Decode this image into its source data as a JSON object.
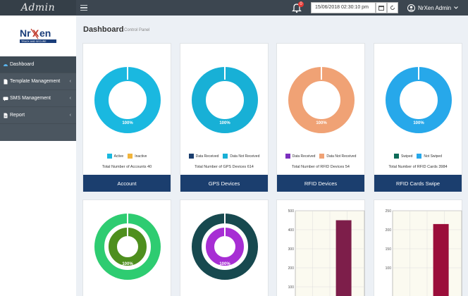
{
  "app": {
    "brand": "Admin",
    "logo_text": "NrXen",
    "logo_tagline": "TRACK AND SECURE"
  },
  "header": {
    "notification_count": "0",
    "datetime": "15/06/2018 02:30:10 pm",
    "user_name": "NrXen Admin"
  },
  "sidebar": {
    "items": [
      {
        "label": "Dashboard",
        "icon": "dashboard-icon",
        "active": true
      },
      {
        "label": "Template Management",
        "icon": "file-icon",
        "active": false
      },
      {
        "label": "SMS Management",
        "icon": "sms-icon",
        "active": false
      },
      {
        "label": "Report",
        "icon": "report-icon",
        "active": false
      }
    ]
  },
  "page": {
    "title": "Dashboard",
    "subtitle": "Control Panel"
  },
  "cards": [
    {
      "button": "Account",
      "total": "Total Number of Accounts 40",
      "percent_label": "100%",
      "color": "#1ab8e0",
      "legend": [
        {
          "label": "Active",
          "color": "#1ab8e0"
        },
        {
          "label": "Inactive",
          "color": "#f2b53c"
        }
      ]
    },
    {
      "button": "GPS Devices",
      "total": "Total Number of GPS Devices 614",
      "percent_label": "100%",
      "color": "#18b0d6",
      "legend": [
        {
          "label": "Data Received",
          "color": "#1b3e6e"
        },
        {
          "label": "Data Not Received",
          "color": "#18b0d6"
        }
      ]
    },
    {
      "button": "RFID Devices",
      "total": "Total Number of RFID Devices 54",
      "percent_label": "100%",
      "color": "#f0a275",
      "legend": [
        {
          "label": "Data Received",
          "color": "#7b2fbe"
        },
        {
          "label": "Data Not Received",
          "color": "#f0a275"
        }
      ]
    },
    {
      "button": "RFID Cards Swipe",
      "total": "Total Number of RFID Cards 3984",
      "percent_label": "100%",
      "color": "#27a8ea",
      "legend": [
        {
          "label": "Swiped",
          "color": "#0e6b58"
        },
        {
          "label": "Not Swiped",
          "color": "#27a8ea"
        }
      ]
    }
  ],
  "bottom_donuts": [
    {
      "percent_label": "100%",
      "outer_color": "#2ecc71",
      "inner_color": "#4e8f1e"
    },
    {
      "percent_label": "100%",
      "outer_color": "#17494f",
      "inner_color": "#a72ed4"
    }
  ],
  "chart_data": [
    {
      "type": "bar",
      "categories": [
        ""
      ],
      "values": [
        450
      ],
      "ylim": [
        0,
        500
      ],
      "yticks": [
        100,
        200,
        300,
        400,
        500
      ],
      "color": "#7d1e4a"
    },
    {
      "type": "bar",
      "categories": [
        ""
      ],
      "values": [
        215
      ],
      "ylim": [
        0,
        250
      ],
      "yticks": [
        100,
        150,
        200,
        250
      ],
      "color": "#9b0e3a"
    }
  ]
}
